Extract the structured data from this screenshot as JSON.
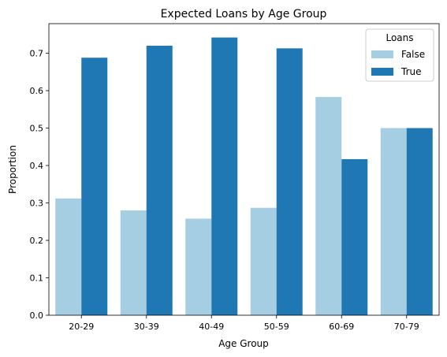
{
  "chart_data": {
    "type": "bar",
    "title": "Expected Loans by Age Group",
    "xlabel": "Age Group",
    "ylabel": "Proportion",
    "categories": [
      "20-29",
      "30-39",
      "40-49",
      "50-59",
      "60-69",
      "70-79"
    ],
    "series": [
      {
        "name": "False",
        "color": "#a6cee3",
        "values": [
          0.312,
          0.28,
          0.258,
          0.287,
          0.583,
          0.5
        ]
      },
      {
        "name": "True",
        "color": "#1f78b4",
        "values": [
          0.688,
          0.72,
          0.742,
          0.713,
          0.417,
          0.5
        ]
      }
    ],
    "yticks": [
      "0.0",
      "0.1",
      "0.2",
      "0.3",
      "0.4",
      "0.5",
      "0.6",
      "0.7"
    ],
    "ylim": [
      0,
      0.779
    ],
    "grid": false,
    "legend": {
      "title": "Loans",
      "placement": "top-right"
    }
  }
}
